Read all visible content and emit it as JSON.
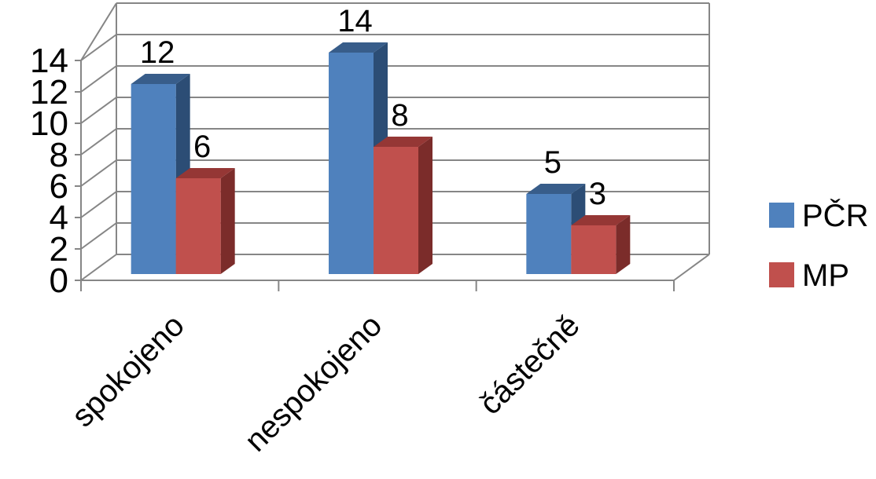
{
  "chart_data": {
    "type": "bar",
    "categories": [
      "spokojeno",
      "nespokojeno",
      "částečně"
    ],
    "series": [
      {
        "name": "PČR",
        "values": [
          12,
          14,
          5
        ],
        "color": "#4F81BD",
        "top_color": "#385D8A",
        "side_color": "#2C4D75"
      },
      {
        "name": "MP",
        "values": [
          6,
          8,
          3
        ],
        "color": "#C0504D",
        "top_color": "#953735",
        "side_color": "#7B2C2A"
      }
    ],
    "y_ticks": [
      "0",
      "2",
      "4",
      "6",
      "8",
      "10",
      "12",
      "14"
    ],
    "ylim": [
      0,
      14
    ],
    "grid": true,
    "legend_position": "right",
    "title": "",
    "xlabel": "",
    "ylabel": ""
  }
}
